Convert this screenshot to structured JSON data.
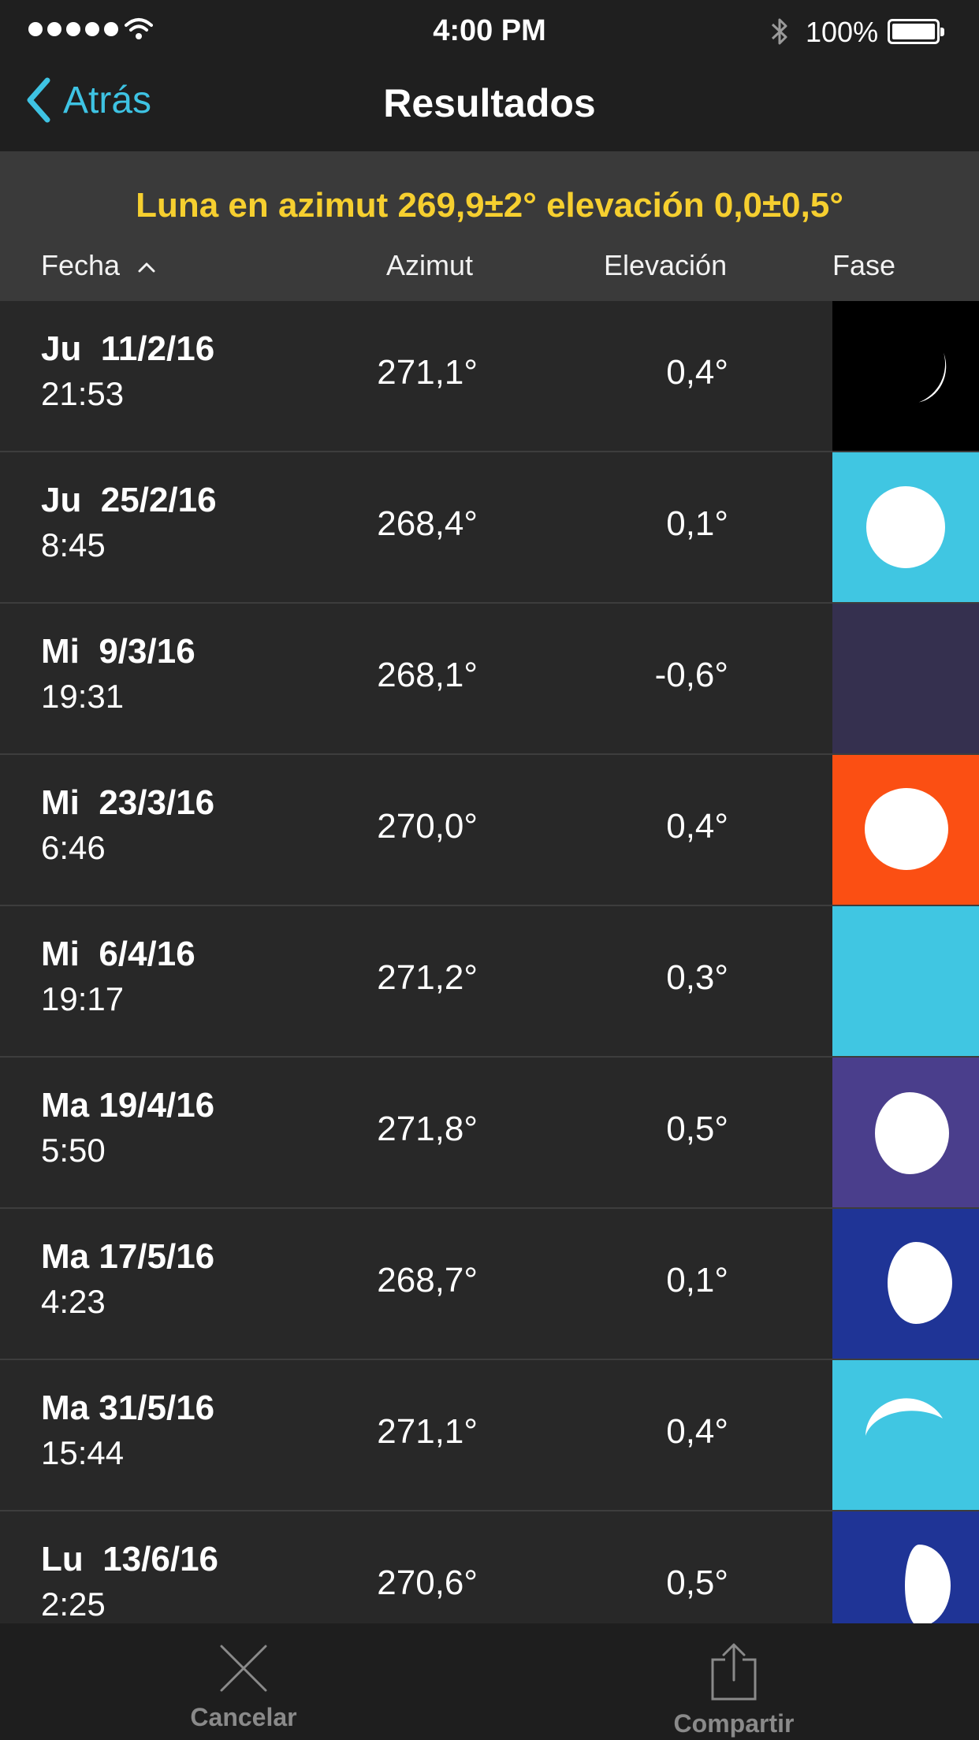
{
  "status_bar": {
    "time": "4:00 PM",
    "battery": "100%"
  },
  "nav": {
    "back_label": "Atrás",
    "title": "Resultados"
  },
  "header": {
    "query": "Luna en azimut 269,9±2° elevación 0,0±0,5°",
    "columns": {
      "fecha": "Fecha",
      "azimut": "Azimut",
      "elevacion": "Elevación",
      "fase": "Fase"
    }
  },
  "rows": [
    {
      "day": "Ju  11/2/16",
      "time": "21:53",
      "azimut": "271,1°",
      "elevacion": "0,4°",
      "phase_bg": "#000000",
      "phase_icon": "waxing-crescent-icon"
    },
    {
      "day": "Ju  25/2/16",
      "time": "8:45",
      "azimut": "268,4°",
      "elevacion": "0,1°",
      "phase_bg": "#40c6e2",
      "phase_icon": "full-moon-icon"
    },
    {
      "day": "Mi  9/3/16",
      "time": "19:31",
      "azimut": "268,1°",
      "elevacion": "-0,6°",
      "phase_bg": "#35304f",
      "phase_icon": "new-moon-icon"
    },
    {
      "day": "Mi  23/3/16",
      "time": "6:46",
      "azimut": "270,0°",
      "elevacion": "0,4°",
      "phase_bg": "#fb4f13",
      "phase_icon": "full-moon-icon"
    },
    {
      "day": "Mi  6/4/16",
      "time": "19:17",
      "azimut": "271,2°",
      "elevacion": "0,3°",
      "phase_bg": "#40c6e2",
      "phase_icon": "new-moon-icon"
    },
    {
      "day": "Ma 19/4/16",
      "time": "5:50",
      "azimut": "271,8°",
      "elevacion": "0,5°",
      "phase_bg": "#4a3e8c",
      "phase_icon": "waxing-gibbous-icon"
    },
    {
      "day": "Ma 17/5/16",
      "time": "4:23",
      "azimut": "268,7°",
      "elevacion": "0,1°",
      "phase_bg": "#1f3496",
      "phase_icon": "waxing-gibbous-icon"
    },
    {
      "day": "Ma 31/5/16",
      "time": "15:44",
      "azimut": "271,1°",
      "elevacion": "0,4°",
      "phase_bg": "#40c6e2",
      "phase_icon": "waning-crescent-icon"
    },
    {
      "day": "Lu  13/6/16",
      "time": "2:25",
      "azimut": "270,6°",
      "elevacion": "0,5°",
      "phase_bg": "#1f3496",
      "phase_icon": "first-quarter-icon"
    }
  ],
  "tabbar": {
    "cancel_label": "Cancelar",
    "share_label": "Compartir"
  },
  "colors": {
    "accent": "#3ec3e3",
    "query_text": "#f6cf2f"
  }
}
